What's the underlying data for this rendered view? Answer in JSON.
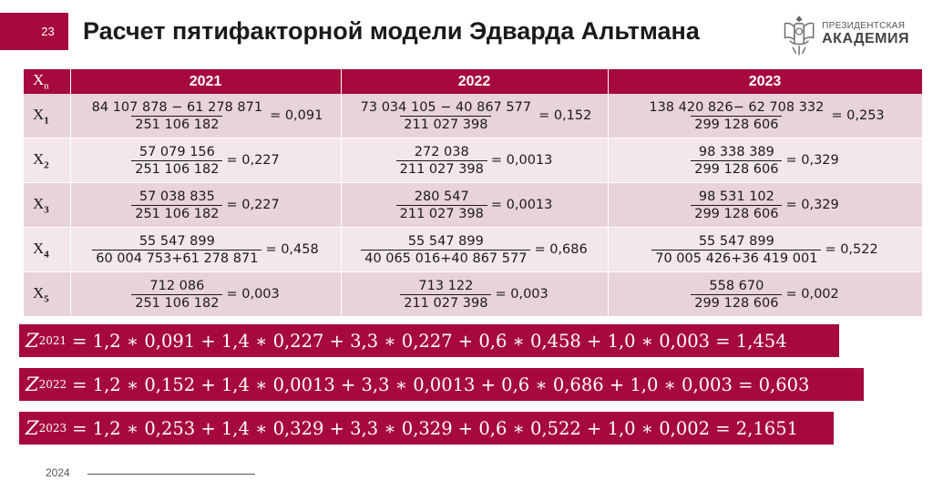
{
  "slide_number": "23",
  "title": "Расчет пятифакторной модели Эдварда Альтмана",
  "logo": {
    "line1": "ПРЕЗИДЕНТСКАЯ",
    "line2": "АКАДЕМИЯ"
  },
  "table": {
    "corner": {
      "base": "X",
      "sub": "n"
    },
    "years": [
      "2021",
      "2022",
      "2023"
    ],
    "rows": [
      {
        "base": "X",
        "sub": "1",
        "cells": [
          {
            "num": "84 107 878 − 61 278 871",
            "den": "251 106 182",
            "res": "= 0,091"
          },
          {
            "num": "73 034 105 − 40 867 577",
            "den": "211 027 398",
            "res": "= 0,152"
          },
          {
            "num": "138 420 826− 62 708 332",
            "den": "299 128 606",
            "res": "= 0,253"
          }
        ]
      },
      {
        "base": "X",
        "sub": "2",
        "cells": [
          {
            "num": "57 079 156",
            "den": "251 106 182",
            "res": "= 0,227"
          },
          {
            "num": "272 038",
            "den": "211 027 398",
            "res": "= 0,0013"
          },
          {
            "num": "98 338 389",
            "den": "299 128 606",
            "res": "= 0,329"
          }
        ]
      },
      {
        "base": "X",
        "sub": "3",
        "cells": [
          {
            "num": "57 038 835",
            "den": "251 106 182",
            "res": "= 0,227"
          },
          {
            "num": "280 547",
            "den": "211 027 398",
            "res": "= 0,0013"
          },
          {
            "num": "98 531 102",
            "den": "299 128 606",
            "res": "= 0,329"
          }
        ]
      },
      {
        "base": "X",
        "sub": "4",
        "cells": [
          {
            "num": "55 547 899",
            "den": "60 004 753+61 278 871",
            "res": "= 0,458"
          },
          {
            "num": "55 547 899",
            "den": "40 065 016+40 867 577",
            "res": "= 0,686"
          },
          {
            "num": "55 547 899",
            "den": "70 005 426+36 419 001",
            "res": "= 0,522"
          }
        ]
      },
      {
        "base": "X",
        "sub": "5",
        "cells": [
          {
            "num": "712 086",
            "den": "251 106 182",
            "res": "= 0,003"
          },
          {
            "num": "713 122",
            "den": "211 027 398",
            "res": "= 0,003"
          },
          {
            "num": "558 670",
            "den": "299 128 606",
            "res": "= 0,002"
          }
        ]
      }
    ]
  },
  "z_formulas": [
    {
      "var": "Z",
      "sub": "2021",
      "expr": "= 1,2 ∗ 0,091 + 1,4 ∗ 0,227 + 3,3 ∗ 0,227 + 0,6 ∗ 0,458 + 1,0 ∗ 0,003 = 1,454"
    },
    {
      "var": "Z",
      "sub": "2022",
      "expr": "= 1,2 ∗ 0,152 + 1,4 ∗ 0,0013 + 3,3 ∗ 0,0013 + 0,6 ∗ 0,686 + 1,0 ∗ 0,003 = 0,603"
    },
    {
      "var": "Z",
      "sub": "2023",
      "expr": "= 1,2 ∗ 0,253 + 1,4 ∗ 0,329 + 3,3 ∗ 0,329 + 0,6 ∗ 0,522 + 1,0 ∗ 0,002 = 2,1651"
    }
  ],
  "footer_year": "2024",
  "colors": {
    "accent": "#a6093d",
    "row_dark": "#e8d3d8",
    "row_light": "#f3e7ea"
  }
}
